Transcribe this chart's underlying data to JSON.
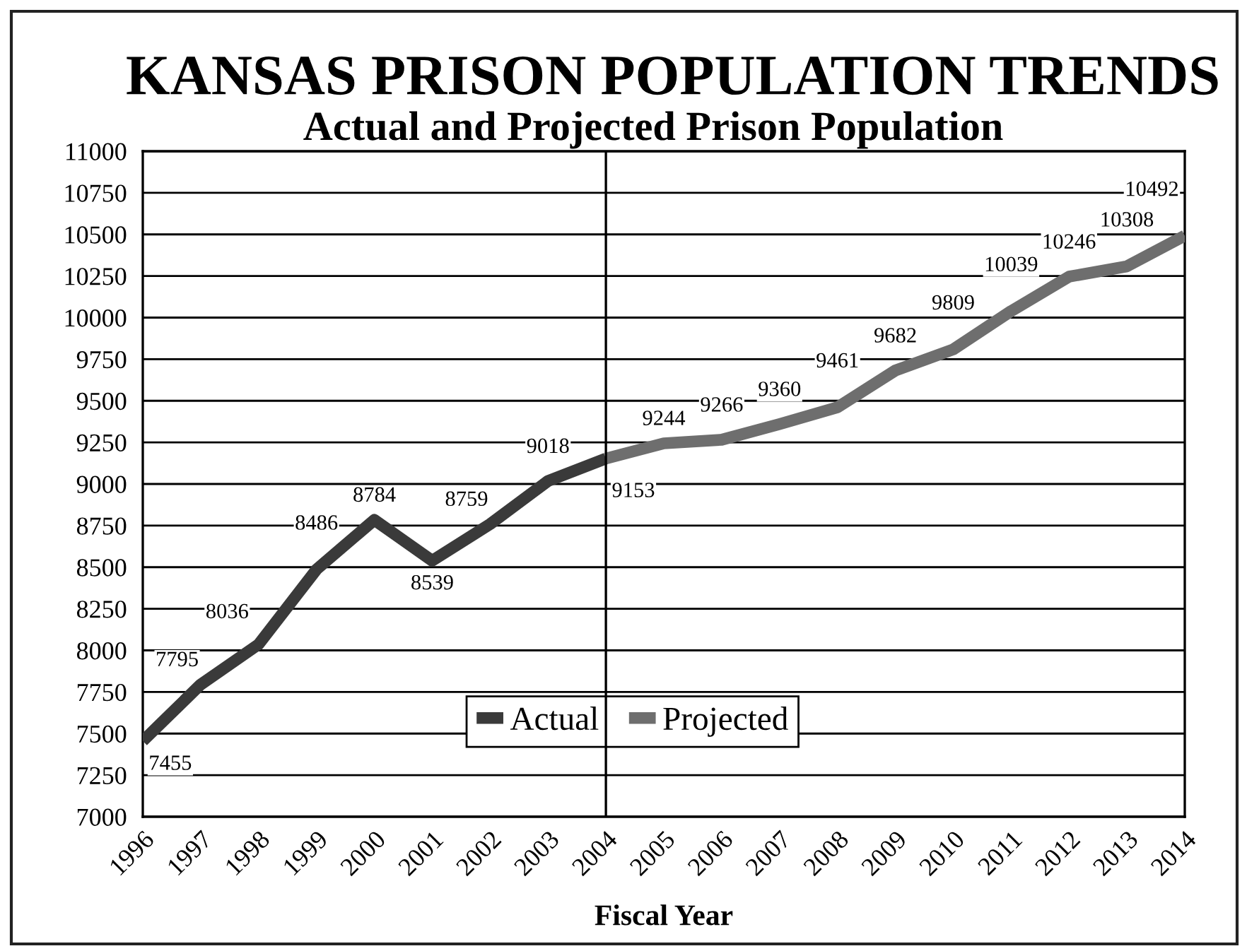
{
  "chart_data": {
    "type": "line",
    "title": "KANSAS PRISON POPULATION TRENDS",
    "subtitle": "Actual and Projected Prison Population",
    "xlabel": "Fiscal Year",
    "xlim": [
      1996,
      2014
    ],
    "xticks": [
      1996,
      1997,
      1998,
      1999,
      2000,
      2001,
      2002,
      2003,
      2004,
      2005,
      2006,
      2007,
      2008,
      2009,
      2010,
      2011,
      2012,
      2013,
      2014
    ],
    "ylim": [
      7000,
      11000
    ],
    "yticks": [
      7000,
      7250,
      7500,
      7750,
      8000,
      8250,
      8500,
      8750,
      9000,
      9250,
      9500,
      9750,
      10000,
      10250,
      10500,
      10750,
      11000
    ],
    "grid": "y",
    "legend": "bottom",
    "line_style": "solid",
    "ref_lines": [
      {
        "axis": "x",
        "value": 2004,
        "color": "#000000"
      }
    ],
    "series": [
      {
        "name": "Actual",
        "color": "#3a3a3a",
        "x": [
          1996,
          1997,
          1998,
          1999,
          2000,
          2001,
          2002,
          2003,
          2004
        ],
        "values": [
          7455,
          7795,
          8036,
          8486,
          8784,
          8539,
          8759,
          9018,
          9153
        ],
        "value_labels": [
          "7455",
          "7795",
          "8036",
          "8486",
          "8784",
          "8539",
          "8759",
          "9018",
          "9153"
        ]
      },
      {
        "name": "Projected",
        "color": "#6e6e6e",
        "x": [
          2004,
          2005,
          2006,
          2007,
          2008,
          2009,
          2010,
          2011,
          2012,
          2013,
          2014
        ],
        "values": [
          9153,
          9244,
          9266,
          9360,
          9461,
          9682,
          9809,
          10039,
          10246,
          10308,
          10492
        ],
        "value_labels": [
          null,
          "9244",
          "9266",
          "9360",
          "9461",
          "9682",
          "9809",
          "10039",
          "10246",
          "10308",
          "10492"
        ]
      }
    ]
  }
}
